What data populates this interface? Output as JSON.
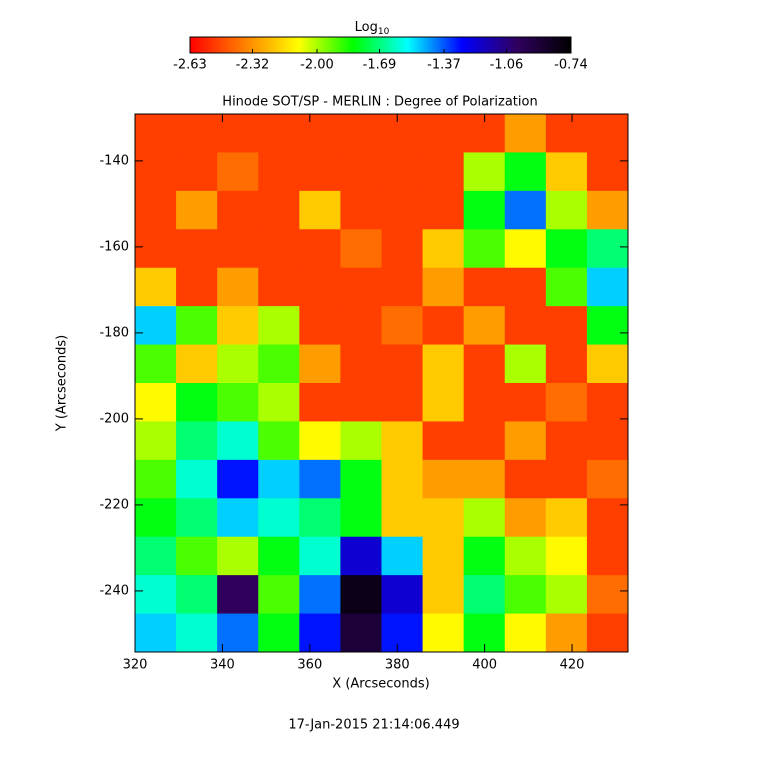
{
  "chart_data": {
    "type": "heatmap",
    "title": "Hinode SOT/SP - MERLIN : Degree of Polarization",
    "x_label": "X (Arcseconds)",
    "y_label": "Y (Arcseconds)",
    "footer": "17-Jan-2015 21:14:06.449",
    "colorbar_label": "Log",
    "colorbar_label_sub": "10",
    "colormap": [
      "#ff0000",
      "#ff8000",
      "#ffff00",
      "#00ff00",
      "#00ffff",
      "#0000ff",
      "#300060",
      "#000000"
    ],
    "clim": [
      -2.63,
      -0.74
    ],
    "cticks": [
      -2.63,
      -2.32,
      {
        "value": -2,
        "label": "-2.00"
      },
      -1.69,
      -1.37,
      -1.06,
      -0.74
    ],
    "xlim": [
      320,
      432.8
    ],
    "ylim": [
      -254.2,
      -129.1
    ],
    "xticks": [
      320,
      340,
      360,
      380,
      400,
      420
    ],
    "yticks": [
      -240,
      -220,
      -200,
      -180,
      -160,
      -140
    ],
    "z": [
      [
        -2.5,
        -2.5,
        -2.5,
        -2.5,
        -2.5,
        -2.5,
        -2.5,
        -2.5,
        -2.5,
        -2.3,
        -2.5,
        -2.5
      ],
      [
        -2.5,
        -2.5,
        -2.4,
        -2.5,
        -2.5,
        -2.5,
        -2.5,
        -2.5,
        -2.0,
        -1.8,
        -2.2,
        -2.5
      ],
      [
        -2.5,
        -2.3,
        -2.5,
        -2.5,
        -2.2,
        -2.5,
        -2.5,
        -2.5,
        -1.8,
        -1.4,
        -2.0,
        -2.3
      ],
      [
        -2.5,
        -2.5,
        -2.5,
        -2.5,
        -2.5,
        -2.4,
        -2.5,
        -2.2,
        -1.9,
        -2.1,
        -1.8,
        -1.7
      ],
      [
        -2.2,
        -2.5,
        -2.3,
        -2.5,
        -2.5,
        -2.5,
        -2.5,
        -2.3,
        -2.5,
        -2.5,
        -1.9,
        -1.5
      ],
      [
        -1.5,
        -1.9,
        -2.2,
        -2.0,
        -2.5,
        -2.5,
        -2.4,
        -2.5,
        -2.3,
        -2.5,
        -2.5,
        -1.8
      ],
      [
        -1.9,
        -2.2,
        -2.0,
        -1.9,
        -2.3,
        -2.5,
        -2.5,
        -2.2,
        -2.5,
        -2.0,
        -2.5,
        -2.2
      ],
      [
        -2.1,
        -1.8,
        -1.9,
        -2.0,
        -2.5,
        -2.5,
        -2.5,
        -2.2,
        -2.5,
        -2.5,
        -2.4,
        -2.5
      ],
      [
        -2.0,
        -1.7,
        -1.6,
        -1.9,
        -2.1,
        -2.0,
        -2.2,
        -2.5,
        -2.5,
        -2.3,
        -2.5,
        -2.5
      ],
      [
        -1.9,
        -1.6,
        -1.3,
        -1.5,
        -1.4,
        -1.8,
        -2.2,
        -2.3,
        -2.3,
        -2.5,
        -2.5,
        -2.4
      ],
      [
        -1.8,
        -1.7,
        -1.5,
        -1.6,
        -1.7,
        -1.8,
        -2.2,
        -2.2,
        -2.0,
        -2.3,
        -2.2,
        -2.5
      ],
      [
        -1.7,
        -1.9,
        -2.0,
        -1.8,
        -1.6,
        -1.2,
        -1.5,
        -2.2,
        -1.8,
        -2.0,
        -2.1,
        -2.5
      ],
      [
        -1.6,
        -1.7,
        -1.0,
        -1.9,
        -1.4,
        -0.8,
        -1.2,
        -2.2,
        -1.7,
        -1.9,
        -2.0,
        -2.4
      ],
      [
        -1.5,
        -1.6,
        -1.4,
        -1.8,
        -1.3,
        -0.9,
        -1.3,
        -2.1,
        -1.8,
        -2.1,
        -2.3,
        -2.5
      ]
    ]
  }
}
